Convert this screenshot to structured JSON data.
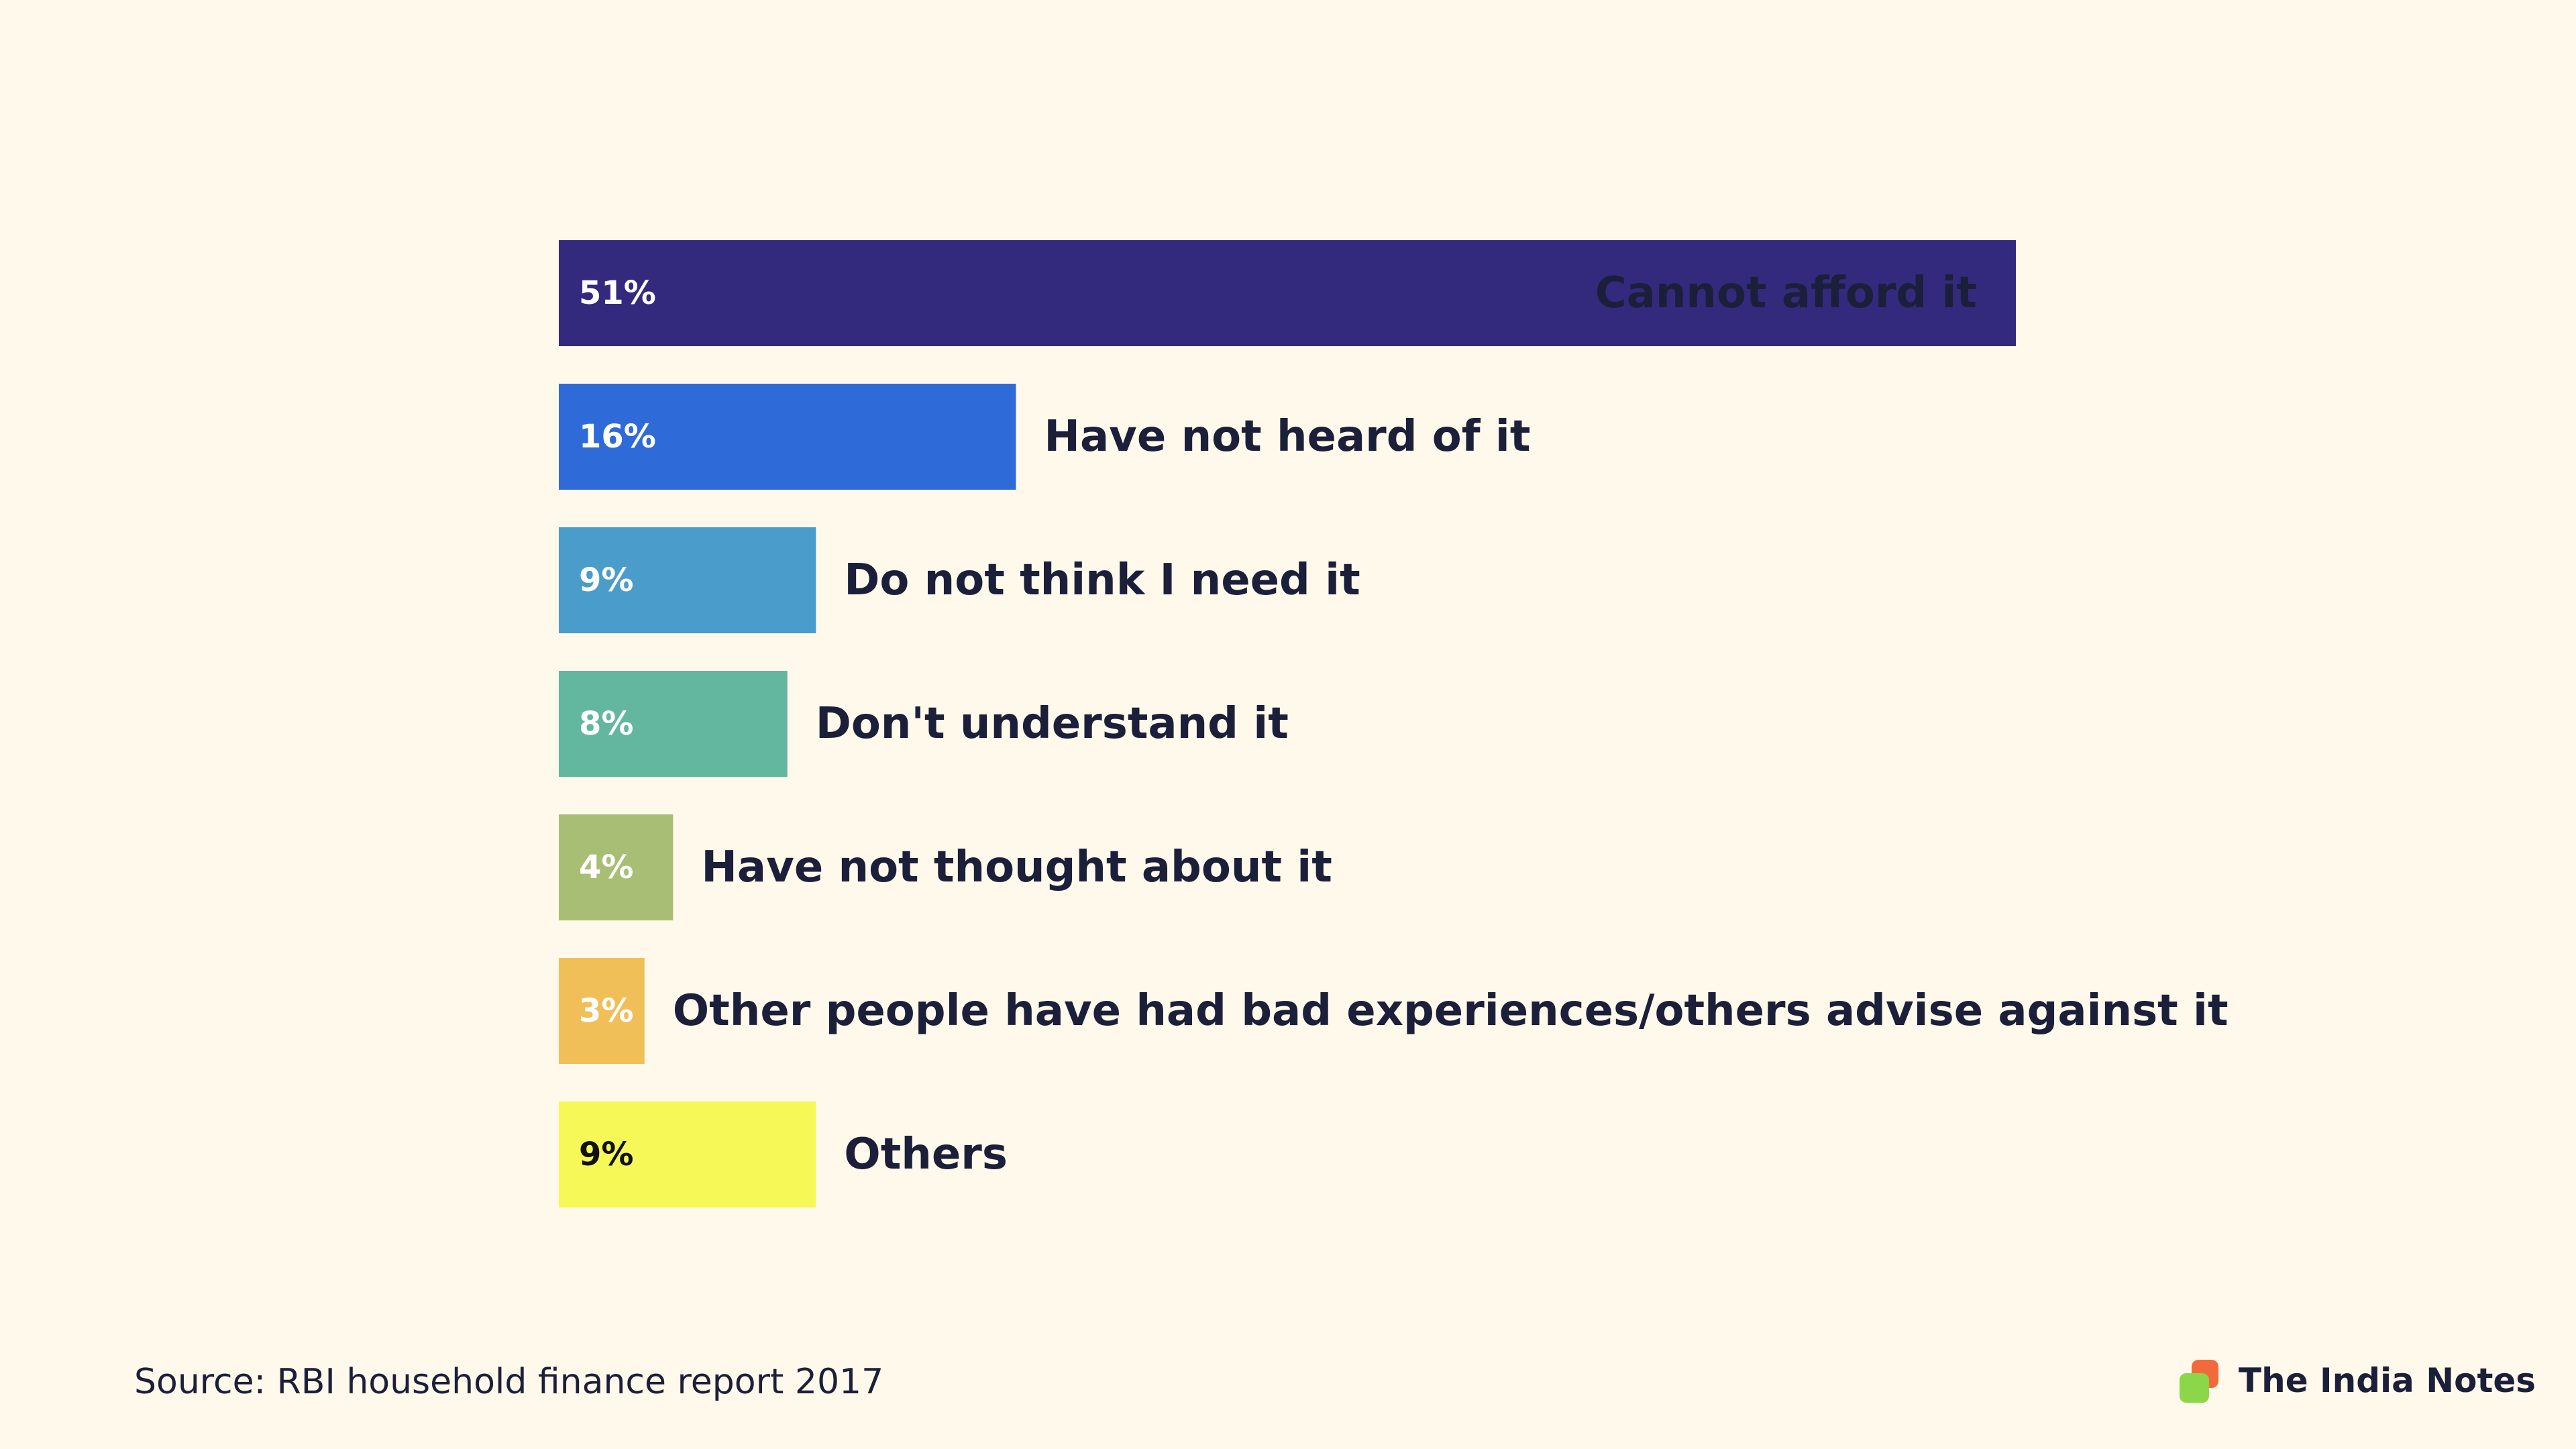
{
  "chart_data": {
    "type": "bar",
    "orientation": "horizontal",
    "categories": [
      "Cannot afford it",
      "Have not heard of it",
      "Do not think I need it",
      "Don't understand it",
      "Have not thought about it",
      "Other people have had bad experiences/others advise against it",
      "Others"
    ],
    "values": [
      51,
      16,
      9,
      8,
      4,
      3,
      9
    ],
    "value_labels": [
      "51%",
      "16%",
      "9%",
      "8%",
      "4%",
      "3%",
      "9%"
    ],
    "colors": [
      "#332A7E",
      "#2F6AD9",
      "#4A9CCB",
      "#62B79E",
      "#A7BE74",
      "#F0BF58",
      "#F6F857"
    ],
    "value_label_colors": [
      "#FFFFFF",
      "#FFFFFF",
      "#FFFFFF",
      "#FFFFFF",
      "#FFFFFF",
      "#FFFFFF",
      "#111111"
    ],
    "category_label_inside": [
      true,
      false,
      false,
      false,
      false,
      false,
      false
    ],
    "title": "",
    "xlabel": "",
    "ylabel": "",
    "grid": false,
    "legend": "none"
  },
  "footer": {
    "source": "Source: RBI household finance report 2017",
    "brand": "The India Notes"
  }
}
